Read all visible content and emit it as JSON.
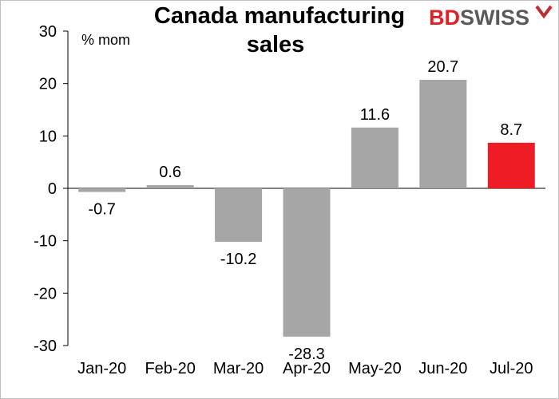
{
  "chart_data": {
    "type": "bar",
    "title_line1": "Canada manufacturing",
    "title_line2": "sales",
    "unit_label": "% mom",
    "categories": [
      "Jan-20",
      "Feb-20",
      "Mar-20",
      "Apr-20",
      "May-20",
      "Jun-20",
      "Jul-20"
    ],
    "values": [
      -0.7,
      0.6,
      -10.2,
      -28.3,
      11.6,
      20.7,
      8.7
    ],
    "value_labels": [
      "-0.7",
      "0.6",
      "-10.2",
      "-28.3",
      "11.6",
      "20.7",
      "8.7"
    ],
    "ylim": [
      -30,
      30
    ],
    "yticks": [
      30,
      20,
      10,
      0,
      -10,
      -20,
      -30
    ],
    "ytick_labels": [
      "30",
      "20",
      "10",
      "0",
      "-10",
      "-20",
      "-30"
    ],
    "bar_color": "#a6a6a6",
    "highlight_color": "#ee1c25",
    "highlight_index": 6,
    "grid": false,
    "legend": "none"
  },
  "logo": {
    "part1": "BD",
    "part2": "SWISS",
    "part1_color": "#e31e24",
    "part2_color": "#5a5a5a"
  }
}
